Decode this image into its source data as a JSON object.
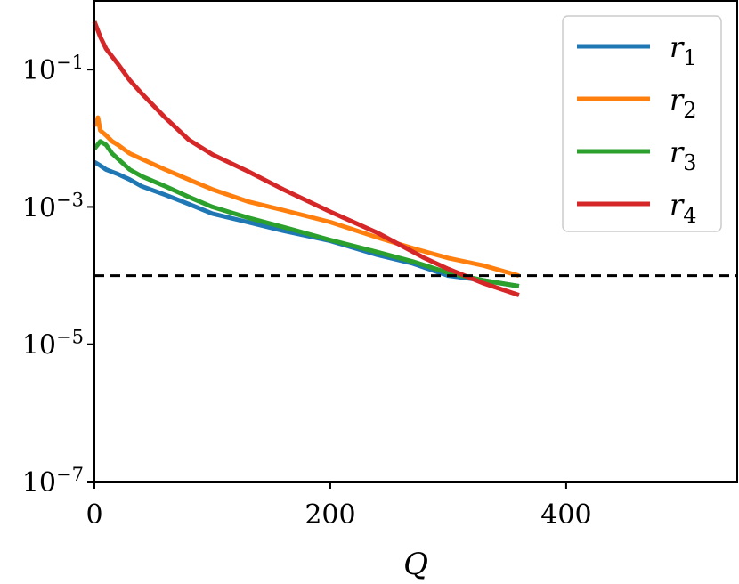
{
  "chart_data": {
    "type": "line",
    "title": "",
    "xlabel": "Q",
    "ylabel": "",
    "xlim": [
      0,
      545
    ],
    "ylim": [
      1e-07,
      1
    ],
    "yscale": "log",
    "xticks": [
      0,
      200,
      400
    ],
    "yticks": [
      {
        "value": 0.1,
        "base": "10",
        "exp": "−1"
      },
      {
        "value": 0.001,
        "base": "10",
        "exp": "−3"
      },
      {
        "value": 1e-05,
        "base": "10",
        "exp": "−5"
      },
      {
        "value": 1e-07,
        "base": "10",
        "exp": "−7"
      }
    ],
    "grid": false,
    "legend_position": "top-right",
    "reference_line": {
      "y": 0.0001,
      "style": "dashed",
      "color": "#000000"
    },
    "series": [
      {
        "name": "r",
        "subscript": "1",
        "color": "#1f77b4",
        "x": [
          0,
          5,
          10,
          20,
          30,
          40,
          60,
          80,
          100,
          130,
          160,
          200,
          240,
          270,
          300,
          330,
          360
        ],
        "y": [
          0.0045,
          0.004,
          0.0035,
          0.003,
          0.0025,
          0.002,
          0.0015,
          0.0011,
          0.0008,
          0.0006,
          0.00045,
          0.00032,
          0.0002,
          0.00015,
          0.0001,
          8.5e-05,
          7e-05
        ]
      },
      {
        "name": "r",
        "subscript": "2",
        "color": "#ff7f0e",
        "x": [
          0,
          3,
          5,
          10,
          15,
          20,
          30,
          40,
          60,
          80,
          100,
          130,
          160,
          200,
          240,
          270,
          300,
          330,
          360
        ],
        "y": [
          0.015,
          0.02,
          0.013,
          0.011,
          0.009,
          0.008,
          0.006,
          0.005,
          0.0035,
          0.0025,
          0.0018,
          0.0012,
          0.0009,
          0.0006,
          0.00036,
          0.00025,
          0.00018,
          0.00014,
          0.0001
        ]
      },
      {
        "name": "r",
        "subscript": "3",
        "color": "#2ca02c",
        "x": [
          0,
          5,
          10,
          15,
          20,
          30,
          40,
          60,
          80,
          100,
          130,
          160,
          200,
          240,
          270,
          300,
          330,
          360
        ],
        "y": [
          0.007,
          0.009,
          0.008,
          0.006,
          0.005,
          0.0035,
          0.0028,
          0.002,
          0.0014,
          0.001,
          0.0007,
          0.00051,
          0.00033,
          0.00022,
          0.00016,
          0.00011,
          8.5e-05,
          7e-05
        ]
      },
      {
        "name": "r",
        "subscript": "4",
        "color": "#d62728",
        "x": [
          0,
          5,
          10,
          20,
          30,
          40,
          60,
          80,
          100,
          130,
          160,
          200,
          240,
          280,
          300,
          330,
          360
        ],
        "y": [
          0.5,
          0.3,
          0.2,
          0.12,
          0.07,
          0.045,
          0.02,
          0.0095,
          0.0058,
          0.0033,
          0.0018,
          0.00085,
          0.00042,
          0.00018,
          0.000125,
          7.7e-05,
          5.2e-05
        ]
      }
    ]
  }
}
